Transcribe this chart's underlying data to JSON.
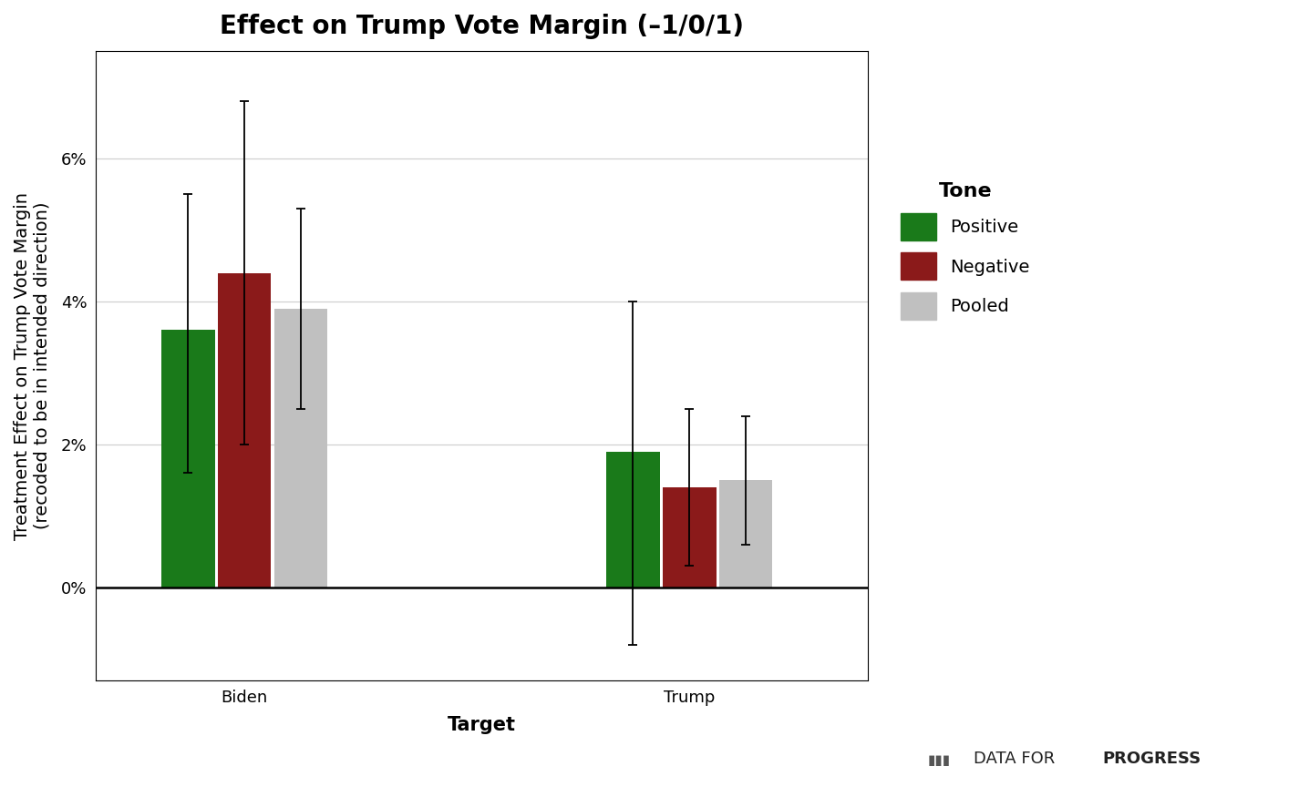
{
  "title": "Effect on Trump Vote Margin (–1/0/1)",
  "xlabel": "Target",
  "ylabel": "Treatment Effect on Trump Vote Margin\n(recoded to be in intended direction)",
  "categories": [
    "Biden",
    "Trump"
  ],
  "tones": [
    "Positive",
    "Negative",
    "Pooled"
  ],
  "colors": [
    "#1a7a1a",
    "#8b1a1a",
    "#c0c0c0"
  ],
  "bar_values": {
    "Biden": [
      0.036,
      0.044,
      0.039
    ],
    "Trump": [
      0.019,
      0.014,
      0.015
    ]
  },
  "error_low": {
    "Biden": [
      0.016,
      0.02,
      0.025
    ],
    "Trump": [
      -0.008,
      0.003,
      0.006
    ]
  },
  "error_high": {
    "Biden": [
      0.055,
      0.068,
      0.053
    ],
    "Trump": [
      0.04,
      0.025,
      0.024
    ]
  },
  "ylim": [
    -0.013,
    0.075
  ],
  "yticks": [
    0.0,
    0.02,
    0.04,
    0.06
  ],
  "yticklabels": [
    "0%",
    "2%",
    "4%",
    "6%"
  ],
  "legend_title": "Tone",
  "bar_width": 0.18,
  "background_color": "#ffffff",
  "panel_color": "#ffffff",
  "grid_color": "#d0d0d0",
  "title_fontsize": 20,
  "axis_label_fontsize": 15,
  "tick_fontsize": 13,
  "legend_fontsize": 14,
  "watermark": "DATA FOR PROGRESS"
}
